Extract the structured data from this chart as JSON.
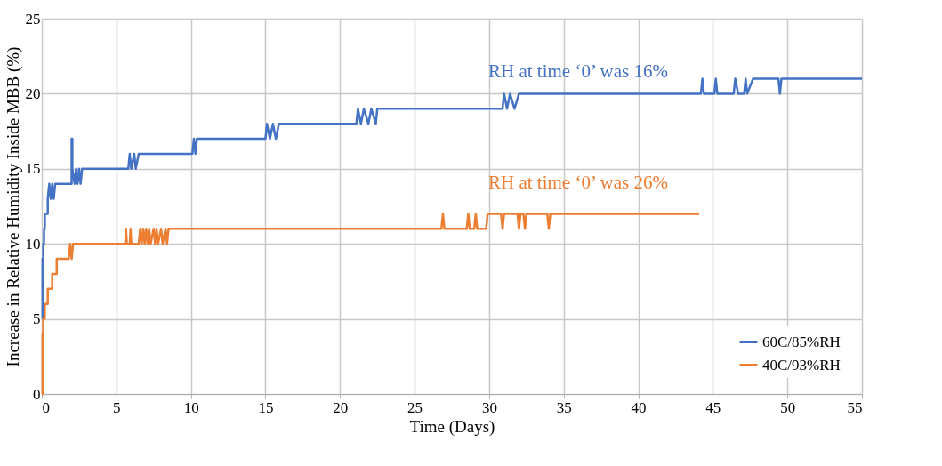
{
  "chart_data": {
    "type": "line",
    "xlabel": "Time (Days)",
    "ylabel": "Increase in Relative Humidity Inside MBB (%)",
    "xlim": [
      0,
      55
    ],
    "xticks": [
      0,
      5,
      10,
      15,
      20,
      25,
      30,
      35,
      40,
      45,
      50,
      55
    ],
    "ylim": [
      0,
      25
    ],
    "yticks": [
      0,
      5,
      10,
      15,
      20,
      25
    ],
    "grid": true,
    "legend": "bottom right",
    "marker": "none",
    "line_style": "solid",
    "annotations": [
      "RH at time ‘0’ was 16%",
      "RH at time ‘0’ was 26%"
    ],
    "series": [
      {
        "name": "60C/85%RH",
        "color": "#4472c4",
        "x": [
          0,
          0.05,
          0.05,
          0.1,
          0.1,
          0.15,
          0.15,
          0.2,
          0.2,
          0.4,
          0.4,
          0.5,
          0.6,
          0.7,
          0.8,
          0.9,
          1.0,
          2.0,
          2.0,
          2.05,
          2.05,
          2.2,
          2.3,
          2.4,
          2.5,
          2.6,
          2.7,
          2.8,
          5.8,
          5.9,
          6.0,
          6.2,
          6.3,
          6.5,
          6.6,
          10.1,
          10.2,
          10.3,
          10.4,
          10.5,
          15.0,
          15.1,
          15.3,
          15.5,
          15.7,
          15.9,
          16.0,
          21.1,
          21.2,
          21.4,
          21.6,
          21.9,
          22.1,
          22.4,
          22.5,
          30.9,
          31.0,
          31.2,
          31.4,
          31.7,
          32.0,
          32.3,
          44.2,
          44.3,
          44.4,
          45.1,
          45.2,
          45.3,
          46.4,
          46.5,
          46.7,
          47.1,
          47.2,
          47.3,
          47.7,
          49.4,
          49.5,
          49.6,
          55
        ],
        "values": [
          5,
          5,
          9,
          9,
          10,
          10,
          11,
          11,
          12,
          12,
          13,
          14,
          13,
          14,
          13,
          14,
          14,
          14,
          17,
          17,
          15,
          14,
          15,
          14,
          15,
          14,
          15,
          15,
          15,
          16,
          15,
          16,
          15,
          16,
          16,
          16,
          17,
          16,
          17,
          17,
          17,
          18,
          17,
          18,
          17,
          18,
          18,
          18,
          19,
          18,
          19,
          18,
          19,
          18,
          19,
          19,
          20,
          19,
          20,
          19,
          20,
          20,
          20,
          21,
          20,
          20,
          21,
          20,
          20,
          21,
          20,
          20,
          21,
          20,
          21,
          21,
          20,
          21,
          21
        ]
      },
      {
        "name": "40C/93%RH",
        "color": "#ed7d31",
        "x": [
          0,
          0.05,
          0.05,
          0.1,
          0.1,
          0.2,
          0.2,
          0.4,
          0.4,
          0.7,
          0.7,
          1.0,
          1.0,
          1.8,
          1.9,
          2.0,
          2.1,
          2.2,
          5.6,
          5.65,
          5.7,
          5.9,
          5.95,
          6.0,
          6.5,
          6.6,
          6.7,
          6.8,
          6.9,
          7.0,
          7.1,
          7.2,
          7.3,
          7.5,
          7.6,
          7.7,
          7.8,
          8.0,
          8.1,
          8.3,
          8.4,
          8.5,
          26.8,
          26.9,
          27.0,
          28.5,
          28.6,
          28.7,
          29.0,
          29.1,
          29.2,
          29.8,
          29.9,
          30.8,
          30.9,
          31.0,
          31.9,
          32.0,
          32.1,
          32.3,
          32.4,
          32.5,
          33.9,
          34.0,
          34.1,
          34.3,
          44.1
        ],
        "values": [
          0,
          0,
          4,
          4,
          5,
          5,
          6,
          6,
          7,
          7,
          8,
          8,
          9,
          9,
          10,
          9,
          10,
          10,
          10,
          11,
          10,
          10,
          11,
          10,
          10,
          11,
          10,
          11,
          10,
          11,
          10,
          11,
          10,
          11,
          10,
          11,
          10,
          11,
          10,
          11,
          10,
          11,
          11,
          12,
          11,
          11,
          12,
          11,
          11,
          12,
          11,
          11,
          12,
          12,
          11,
          12,
          12,
          11,
          12,
          12,
          11,
          12,
          12,
          11,
          12,
          12,
          12
        ]
      }
    ]
  }
}
